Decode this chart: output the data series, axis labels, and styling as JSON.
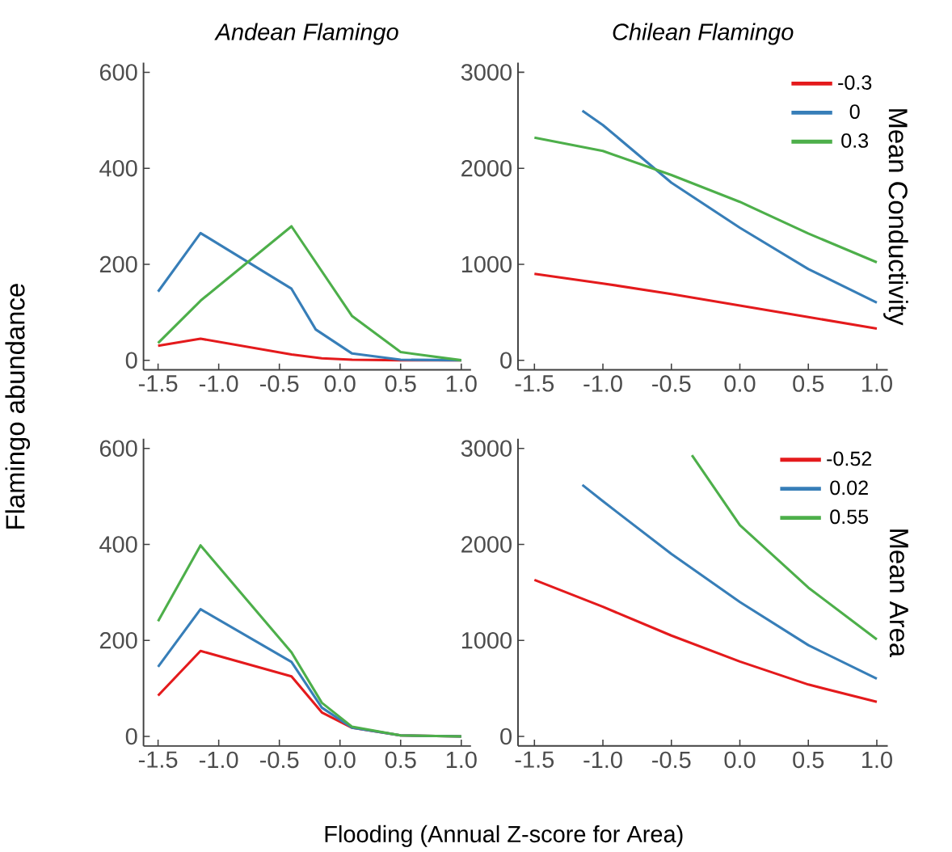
{
  "chart_data": [
    {
      "type": "line",
      "title": "*Andean Flamingo*",
      "ylabel": "Flamingo abundance",
      "xlim": [
        -1.62,
        1.08
      ],
      "ylim": [
        -20,
        620
      ],
      "xticks": [
        -1.5,
        {
          "value": -1,
          "label": "-1.0"
        },
        -0.5,
        {
          "value": 0,
          "label": "0.0"
        },
        0.5,
        {
          "value": 1,
          "label": "1.0"
        }
      ],
      "yticks": [
        0,
        200,
        400,
        600
      ],
      "grid": false,
      "legend": false,
      "series": [
        {
          "color": "#e41a1c",
          "x": [
            -1.5,
            -1.15,
            -0.4,
            -0.15,
            0.1,
            0.5,
            1.0
          ],
          "values": [
            30,
            45,
            12,
            4,
            1,
            0,
            0
          ]
        },
        {
          "color": "#377eb8",
          "x": [
            -1.5,
            -1.15,
            -0.4,
            -0.2,
            0.1,
            0.5,
            1.0
          ],
          "values": [
            143,
            265,
            149,
            64,
            14,
            1,
            0
          ]
        },
        {
          "color": "#4daf4a",
          "x": [
            -1.5,
            -1.15,
            -0.4,
            0.1,
            0.5,
            1.0
          ],
          "values": [
            36,
            124,
            279,
            92,
            17,
            0
          ]
        }
      ]
    },
    {
      "type": "line",
      "title": "*Chilean Flamingo*",
      "y2label": "Mean Conductivity",
      "xlim": [
        -1.62,
        1.08
      ],
      "ylim": [
        -100,
        3100
      ],
      "xticks": [
        -1.5,
        {
          "value": -1,
          "label": "-1.0"
        },
        -0.5,
        {
          "value": 0,
          "label": "0.0"
        },
        0.5,
        {
          "value": 1,
          "label": "1.0"
        }
      ],
      "yticks": [
        0,
        1000,
        2000,
        3000
      ],
      "grid": false,
      "legend": "top right",
      "series": [
        {
          "name": "-0.3",
          "color": "#e41a1c",
          "x": [
            -1.5,
            -1.0,
            -0.5,
            0.0,
            0.5,
            1.0
          ],
          "values": [
            900,
            800,
            690,
            570,
            450,
            330
          ]
        },
        {
          "name": "0",
          "color": "#377eb8",
          "x": [
            -1.15,
            -1.0,
            -0.5,
            0.0,
            0.5,
            1.0
          ],
          "values": [
            2600,
            2450,
            1850,
            1380,
            950,
            600
          ]
        },
        {
          "name": "0.3",
          "color": "#4daf4a",
          "x": [
            -1.5,
            -1.0,
            -0.5,
            0.0,
            0.5,
            1.0
          ],
          "values": [
            2320,
            2180,
            1930,
            1650,
            1320,
            1020
          ]
        }
      ]
    },
    {
      "type": "line",
      "xlabel": "Flooding (Annual Z-score for Area)",
      "xlim": [
        -1.62,
        1.08
      ],
      "ylim": [
        -20,
        620
      ],
      "xticks": [
        -1.5,
        {
          "value": -1,
          "label": "-1.0"
        },
        -0.5,
        {
          "value": 0,
          "label": "0.0"
        },
        0.5,
        {
          "value": 1,
          "label": "1.0"
        }
      ],
      "yticks": [
        0,
        200,
        400,
        600
      ],
      "grid": false,
      "legend": false,
      "series": [
        {
          "color": "#e41a1c",
          "x": [
            -1.5,
            -1.15,
            -0.4,
            -0.15,
            0.1,
            0.5,
            1.0
          ],
          "values": [
            85,
            178,
            125,
            50,
            18,
            2,
            0
          ]
        },
        {
          "color": "#377eb8",
          "x": [
            -1.5,
            -1.15,
            -0.4,
            -0.15,
            0.1,
            0.5,
            1.0
          ],
          "values": [
            145,
            265,
            155,
            60,
            18,
            2,
            0
          ]
        },
        {
          "color": "#4daf4a",
          "x": [
            -1.5,
            -1.15,
            -0.4,
            -0.15,
            0.1,
            0.5,
            1.0
          ],
          "values": [
            240,
            398,
            175,
            70,
            20,
            2,
            0
          ]
        }
      ]
    },
    {
      "type": "line",
      "y2label": "Mean Area",
      "xlim": [
        -1.62,
        1.08
      ],
      "ylim": [
        -100,
        3100
      ],
      "xticks": [
        -1.5,
        {
          "value": -1,
          "label": "-1.0"
        },
        -0.5,
        {
          "value": 0,
          "label": "0.0"
        },
        0.5,
        {
          "value": 1,
          "label": "1.0"
        }
      ],
      "yticks": [
        0,
        1000,
        2000,
        3000
      ],
      "grid": false,
      "legend": "top right",
      "series": [
        {
          "name": "-0.52",
          "color": "#e41a1c",
          "x": [
            -1.5,
            -1.0,
            -0.5,
            0.0,
            0.5,
            1.0
          ],
          "values": [
            1630,
            1350,
            1050,
            780,
            540,
            360
          ]
        },
        {
          "name": "0.02",
          "color": "#377eb8",
          "x": [
            -1.15,
            -1.0,
            -0.5,
            0.0,
            0.5,
            1.0
          ],
          "values": [
            2620,
            2450,
            1900,
            1400,
            950,
            600
          ]
        },
        {
          "name": "0.55",
          "color": "#4daf4a",
          "x": [
            -0.35,
            0.0,
            0.5,
            1.0
          ],
          "values": [
            2930,
            2200,
            1550,
            1010
          ]
        }
      ]
    }
  ]
}
